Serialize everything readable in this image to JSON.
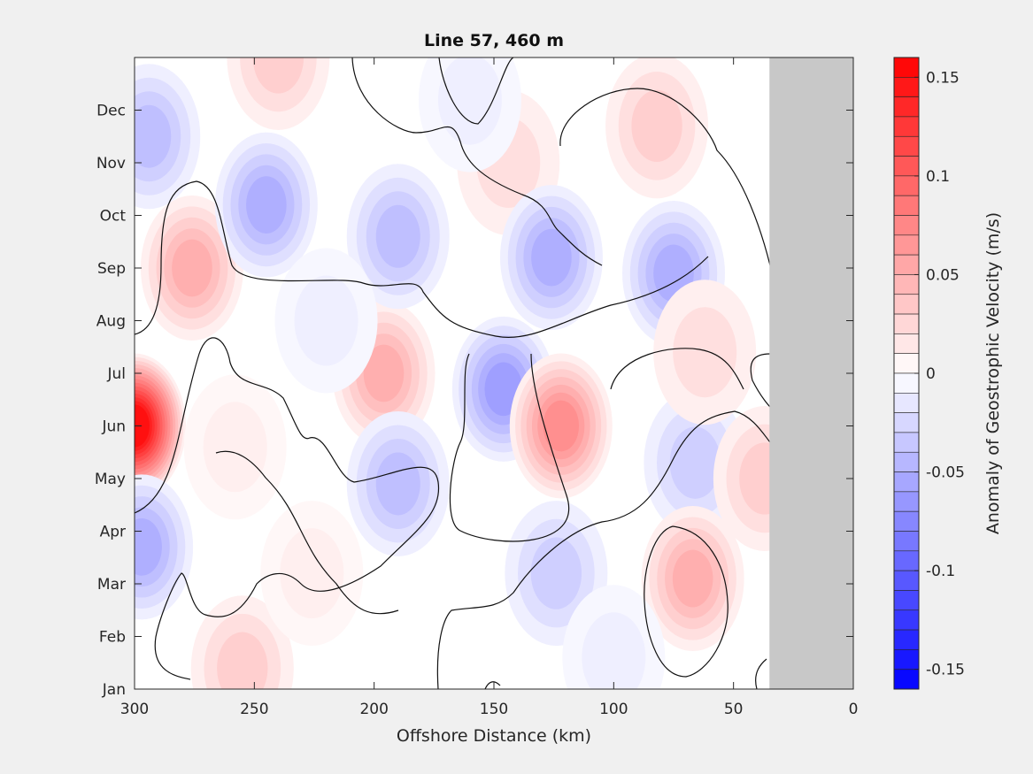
{
  "chart_data": {
    "type": "heatmap",
    "title": "Line 57, 460 m",
    "xlabel": "Offshore Distance (km)",
    "ylabel": "",
    "x_ticks": [
      300,
      250,
      200,
      150,
      100,
      50,
      0
    ],
    "xlim": [
      300,
      0
    ],
    "x_reversed": true,
    "y_ticks": [
      "Jan",
      "Feb",
      "Mar",
      "Apr",
      "May",
      "Jun",
      "Jul",
      "Aug",
      "Sep",
      "Oct",
      "Nov",
      "Dec"
    ],
    "ylim_months": [
      1,
      13
    ],
    "land_mask_x_km": [
      35,
      0
    ],
    "land_mask_color": "#c8c8c8",
    "zero_contour": true,
    "colorbar": {
      "label": "Anomaly of Geostrophic Velocity (m/s)",
      "range": [
        -0.16,
        0.16
      ],
      "step": 0.01,
      "tick_values": [
        0.15,
        0.1,
        0.05,
        0,
        -0.05,
        -0.1,
        -0.15
      ],
      "tick_labels": [
        "0.15",
        "0.1",
        "0.05",
        "0",
        "-0.05",
        "-0.1",
        "-0.15"
      ],
      "positive_color": "#ff0000",
      "negative_color": "#0000ff",
      "neutral_color": "#ffffff"
    },
    "features": [
      {
        "x": 300,
        "month": 6.0,
        "value": 0.15
      },
      {
        "x": 276,
        "month": 9.0,
        "value": 0.05
      },
      {
        "x": 294,
        "month": 11.5,
        "value": -0.04
      },
      {
        "x": 297,
        "month": 3.7,
        "value": -0.05
      },
      {
        "x": 245,
        "month": 10.2,
        "value": -0.05
      },
      {
        "x": 240,
        "month": 13.0,
        "value": 0.03
      },
      {
        "x": 196,
        "month": 7.0,
        "value": 0.05
      },
      {
        "x": 190,
        "month": 9.6,
        "value": -0.04
      },
      {
        "x": 190,
        "month": 4.9,
        "value": -0.04
      },
      {
        "x": 146,
        "month": 6.7,
        "value": -0.06
      },
      {
        "x": 144,
        "month": 11.0,
        "value": 0.02
      },
      {
        "x": 122,
        "month": 6.0,
        "value": 0.07
      },
      {
        "x": 126,
        "month": 9.2,
        "value": -0.05
      },
      {
        "x": 75,
        "month": 8.9,
        "value": -0.05
      },
      {
        "x": 66,
        "month": 5.3,
        "value": -0.03
      },
      {
        "x": 67,
        "month": 3.1,
        "value": 0.05
      },
      {
        "x": 82,
        "month": 11.7,
        "value": 0.03
      },
      {
        "x": 37,
        "month": 5.0,
        "value": 0.03
      },
      {
        "x": 255,
        "month": 1.4,
        "value": 0.03
      },
      {
        "x": 124,
        "month": 3.2,
        "value": -0.03
      },
      {
        "x": 62,
        "month": 7.4,
        "value": 0.02
      },
      {
        "x": 226,
        "month": 3.2,
        "value": 0.01
      },
      {
        "x": 258,
        "month": 5.6,
        "value": 0.01
      },
      {
        "x": 220,
        "month": 8.0,
        "value": -0.01
      },
      {
        "x": 160,
        "month": 12.2,
        "value": -0.01
      },
      {
        "x": 100,
        "month": 1.6,
        "value": -0.01
      }
    ]
  }
}
